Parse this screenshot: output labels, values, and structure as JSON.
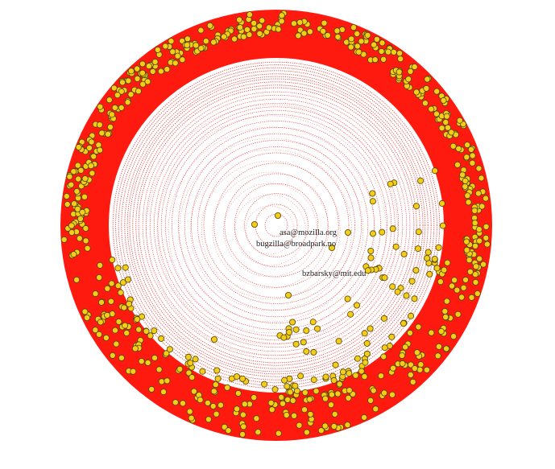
{
  "diagram": {
    "type": "concentric-radial-network",
    "colors": {
      "ring": "#e8221e",
      "ring_fill": "#ff1a10",
      "node_fill": "#f2cd19",
      "node_stroke": "#4f4000",
      "background": "#ffffff",
      "label": "#222222"
    },
    "labels": [
      {
        "id": "asa",
        "text": "asa@mozilla.org"
      },
      {
        "id": "bugzilla",
        "text": "bugzilla@broadpark.no"
      },
      {
        "id": "bzbarsky",
        "text": "bzbarsky@mit.edu"
      }
    ]
  }
}
